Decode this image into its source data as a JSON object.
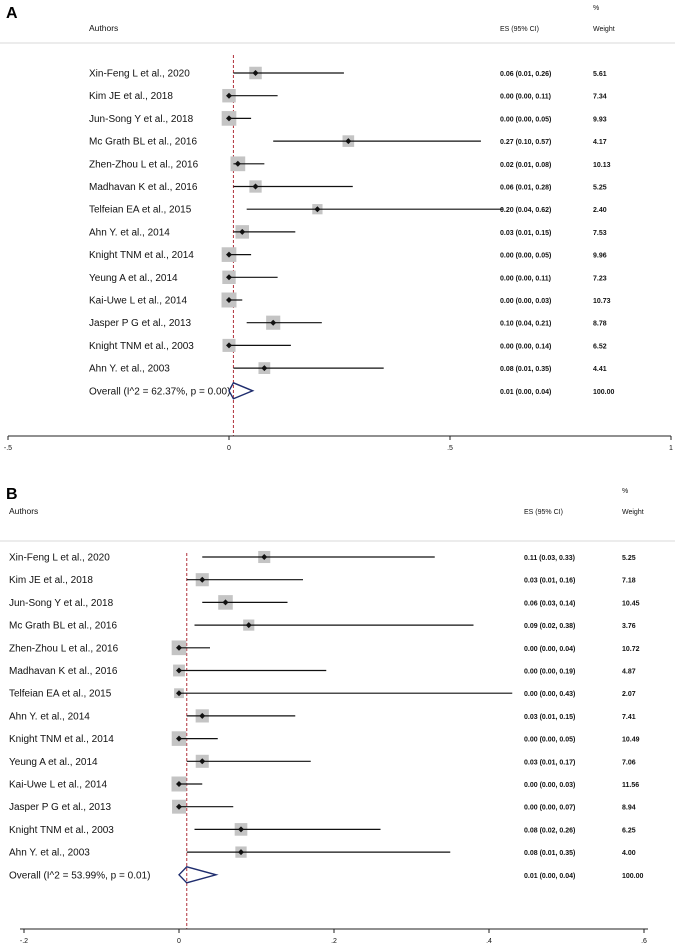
{
  "chart_data": [
    {
      "type": "forest",
      "panel": "A",
      "headers": {
        "authors": "Authors",
        "es": "ES (95% CI)",
        "weight_symbol": "%",
        "weight": "Weight"
      },
      "studies": [
        {
          "label": "Xin-Feng L et al., 2020",
          "es": 0.06,
          "lo": 0.01,
          "hi": 0.26,
          "es_text": "0.06 (0.01, 0.26)",
          "weight": "5.61"
        },
        {
          "label": "Kim JE et al., 2018",
          "es": 0.0,
          "lo": 0.0,
          "hi": 0.11,
          "es_text": "0.00 (0.00, 0.11)",
          "weight": "7.34"
        },
        {
          "label": "Jun-Song Y et al., 2018",
          "es": 0.0,
          "lo": 0.0,
          "hi": 0.05,
          "es_text": "0.00 (0.00, 0.05)",
          "weight": "9.93"
        },
        {
          "label": "Mc Grath BL et al., 2016",
          "es": 0.27,
          "lo": 0.1,
          "hi": 0.57,
          "es_text": "0.27 (0.10, 0.57)",
          "weight": "4.17"
        },
        {
          "label": "Zhen-Zhou L et al., 2016",
          "es": 0.02,
          "lo": 0.01,
          "hi": 0.08,
          "es_text": "0.02 (0.01, 0.08)",
          "weight": "10.13"
        },
        {
          "label": "Madhavan K et al., 2016",
          "es": 0.06,
          "lo": 0.01,
          "hi": 0.28,
          "es_text": "0.06 (0.01, 0.28)",
          "weight": "5.25"
        },
        {
          "label": "Telfeian EA et al., 2015",
          "es": 0.2,
          "lo": 0.04,
          "hi": 0.62,
          "es_text": "0.20 (0.04, 0.62)",
          "weight": "2.40"
        },
        {
          "label": "Ahn Y. et al., 2014",
          "es": 0.03,
          "lo": 0.01,
          "hi": 0.15,
          "es_text": "0.03 (0.01, 0.15)",
          "weight": "7.53"
        },
        {
          "label": "Knight TNM et al., 2014",
          "es": 0.0,
          "lo": 0.0,
          "hi": 0.05,
          "es_text": "0.00 (0.00, 0.05)",
          "weight": "9.96"
        },
        {
          "label": "Yeung A et al., 2014",
          "es": 0.0,
          "lo": 0.0,
          "hi": 0.11,
          "es_text": "0.00 (0.00, 0.11)",
          "weight": "7.23"
        },
        {
          "label": "Kai-Uwe L et al., 2014",
          "es": 0.0,
          "lo": 0.0,
          "hi": 0.03,
          "es_text": "0.00 (0.00, 0.03)",
          "weight": "10.73"
        },
        {
          "label": "Jasper P G et al., 2013",
          "es": 0.1,
          "lo": 0.04,
          "hi": 0.21,
          "es_text": "0.10 (0.04, 0.21)",
          "weight": "8.78"
        },
        {
          "label": "Knight TNM et al., 2003",
          "es": 0.0,
          "lo": 0.0,
          "hi": 0.14,
          "es_text": "0.00 (0.00, 0.14)",
          "weight": "6.52"
        },
        {
          "label": "Ahn Y. et al., 2003",
          "es": 0.08,
          "lo": 0.01,
          "hi": 0.35,
          "es_text": "0.08 (0.01, 0.35)",
          "weight": "4.41"
        }
      ],
      "overall": {
        "label": "Overall  (I^2 = 62.37%, p = 0.00)",
        "es": 0.01,
        "lo": 0.0,
        "hi": 0.04,
        "es_text": "0.01 (0.00, 0.04)",
        "weight": "100.00"
      },
      "xlim": [
        -0.5,
        1
      ],
      "xticks": [
        -0.5,
        0,
        0.5,
        1
      ],
      "xtick_labels": [
        "-.5",
        "0",
        ".5",
        "1"
      ],
      "reference_line": 0.01
    },
    {
      "type": "forest",
      "panel": "B",
      "headers": {
        "authors": "Authors",
        "es": "ES (95% CI)",
        "weight_symbol": "%",
        "weight": "Weight"
      },
      "studies": [
        {
          "label": "Xin-Feng L et al., 2020",
          "es": 0.11,
          "lo": 0.03,
          "hi": 0.33,
          "es_text": "0.11 (0.03, 0.33)",
          "weight": "5.25"
        },
        {
          "label": "Kim JE et al., 2018",
          "es": 0.03,
          "lo": 0.01,
          "hi": 0.16,
          "es_text": "0.03 (0.01, 0.16)",
          "weight": "7.18"
        },
        {
          "label": "Jun-Song Y et al., 2018",
          "es": 0.06,
          "lo": 0.03,
          "hi": 0.14,
          "es_text": "0.06 (0.03, 0.14)",
          "weight": "10.45"
        },
        {
          "label": "Mc Grath BL et al., 2016",
          "es": 0.09,
          "lo": 0.02,
          "hi": 0.38,
          "es_text": "0.09 (0.02, 0.38)",
          "weight": "3.76"
        },
        {
          "label": "Zhen-Zhou L et al., 2016",
          "es": 0.0,
          "lo": 0.0,
          "hi": 0.04,
          "es_text": "0.00 (0.00, 0.04)",
          "weight": "10.72"
        },
        {
          "label": "Madhavan K et al., 2016",
          "es": 0.0,
          "lo": 0.0,
          "hi": 0.19,
          "es_text": "0.00 (0.00, 0.19)",
          "weight": "4.87"
        },
        {
          "label": "Telfeian EA et al., 2015",
          "es": 0.0,
          "lo": 0.0,
          "hi": 0.43,
          "es_text": "0.00 (0.00, 0.43)",
          "weight": "2.07"
        },
        {
          "label": "Ahn Y. et al., 2014",
          "es": 0.03,
          "lo": 0.01,
          "hi": 0.15,
          "es_text": "0.03 (0.01, 0.15)",
          "weight": "7.41"
        },
        {
          "label": "Knight TNM et al., 2014",
          "es": 0.0,
          "lo": 0.0,
          "hi": 0.05,
          "es_text": "0.00 (0.00, 0.05)",
          "weight": "10.49"
        },
        {
          "label": "Yeung A et al., 2014",
          "es": 0.03,
          "lo": 0.01,
          "hi": 0.17,
          "es_text": "0.03 (0.01, 0.17)",
          "weight": "7.06"
        },
        {
          "label": "Kai-Uwe L et al., 2014",
          "es": 0.0,
          "lo": 0.0,
          "hi": 0.03,
          "es_text": "0.00 (0.00, 0.03)",
          "weight": "11.56"
        },
        {
          "label": "Jasper P G et al., 2013",
          "es": 0.0,
          "lo": 0.0,
          "hi": 0.07,
          "es_text": "0.00 (0.00, 0.07)",
          "weight": "8.94"
        },
        {
          "label": "Knight TNM et al., 2003",
          "es": 0.08,
          "lo": 0.02,
          "hi": 0.26,
          "es_text": "0.08 (0.02, 0.26)",
          "weight": "6.25"
        },
        {
          "label": "Ahn Y. et al., 2003",
          "es": 0.08,
          "lo": 0.01,
          "hi": 0.35,
          "es_text": "0.08 (0.01, 0.35)",
          "weight": "4.00"
        }
      ],
      "overall": {
        "label": "Overall  (I^2 = 53.99%, p = 0.01)",
        "es": 0.01,
        "lo": 0.0,
        "hi": 0.04,
        "es_text": "0.01 (0.00, 0.04)",
        "weight": "100.00"
      },
      "xlim": [
        -0.2,
        0.6
      ],
      "xticks": [
        -0.2,
        0,
        0.2,
        0.4,
        0.6
      ],
      "xtick_labels": [
        "-.2",
        "0",
        ".2",
        ".4",
        ".6"
      ],
      "reference_line": 0.01
    }
  ],
  "colors": {
    "reference_line": "#b0303a",
    "diamond": "#1f2d6e",
    "weight_box": "#c4c4c4",
    "point": "#111111",
    "ci_line": "#111111"
  }
}
